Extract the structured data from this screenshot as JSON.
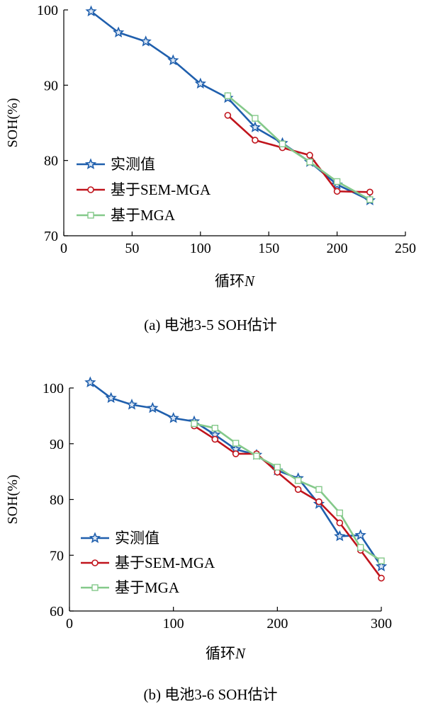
{
  "chart_data": [
    {
      "type": "line",
      "caption": "(a) 电池3-5 SOH估计",
      "xlabel_main": "循环",
      "xlabel_var": "N",
      "ylabel": "SOH(%)",
      "xlim": [
        0,
        250
      ],
      "ylim": [
        70,
        100
      ],
      "xticks": [
        0,
        50,
        100,
        150,
        200,
        250
      ],
      "yticks": [
        70,
        80,
        90,
        100
      ],
      "legend_position": "lower-left",
      "series": [
        {
          "name": "实测值",
          "color": "#1f5fad",
          "marker": "star",
          "x": [
            20,
            40,
            60,
            80,
            100,
            120,
            140,
            160,
            180,
            200,
            224
          ],
          "y": [
            99.8,
            97.0,
            95.8,
            93.3,
            90.2,
            88.3,
            84.4,
            82.3,
            79.8,
            76.8,
            74.7
          ]
        },
        {
          "name": "基于SEM-MGA",
          "color": "#c0141c",
          "marker": "circle",
          "x": [
            120,
            140,
            160,
            180,
            200,
            224
          ],
          "y": [
            86.0,
            82.7,
            81.7,
            80.7,
            75.9,
            75.8
          ]
        },
        {
          "name": "基于MGA",
          "color": "#84c98a",
          "marker": "square",
          "x": [
            120,
            140,
            160,
            180,
            200,
            224
          ],
          "y": [
            88.6,
            85.6,
            82.2,
            79.8,
            77.2,
            74.8
          ]
        }
      ]
    },
    {
      "type": "line",
      "caption": "(b) 电池3-6 SOH估计",
      "xlabel_main": "循环",
      "xlabel_var": "N",
      "ylabel": "SOH(%)",
      "xlim": [
        0,
        300
      ],
      "ylim": [
        60,
        100
      ],
      "xticks": [
        0,
        100,
        200,
        300
      ],
      "yticks": [
        60,
        70,
        80,
        90,
        100
      ],
      "legend_position": "lower-left",
      "series": [
        {
          "name": "实测值",
          "color": "#1f5fad",
          "marker": "star",
          "x": [
            20,
            40,
            60,
            80,
            100,
            120,
            140,
            160,
            180,
            200,
            220,
            240,
            260,
            280,
            300
          ],
          "y": [
            101.0,
            98.2,
            97.0,
            96.4,
            94.6,
            94.0,
            91.6,
            89.0,
            88.0,
            85.2,
            83.8,
            79.2,
            73.4,
            73.6,
            68.0
          ]
        },
        {
          "name": "基于SEM-MGA",
          "color": "#c0141c",
          "marker": "circle",
          "x": [
            120,
            140,
            160,
            180,
            200,
            220,
            240,
            260,
            280,
            300
          ],
          "y": [
            93.2,
            90.8,
            88.2,
            88.2,
            84.9,
            81.8,
            79.6,
            75.8,
            70.9,
            65.9
          ]
        },
        {
          "name": "基于MGA",
          "color": "#84c98a",
          "marker": "square",
          "x": [
            120,
            140,
            160,
            180,
            200,
            220,
            240,
            260,
            280,
            300
          ],
          "y": [
            93.6,
            92.8,
            90.1,
            87.8,
            85.8,
            83.4,
            81.8,
            77.6,
            71.4,
            69.0
          ]
        }
      ]
    }
  ]
}
